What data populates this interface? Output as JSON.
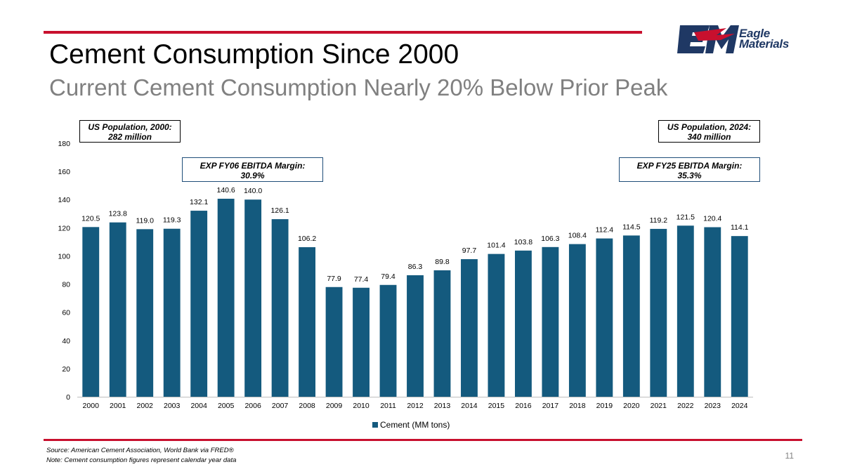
{
  "header": {
    "title": "Cement Consumption Since 2000",
    "subtitle": "Current Cement Consumption Nearly 20% Below Prior Peak"
  },
  "logo": {
    "mark": "EM",
    "line1": "Eagle",
    "line2": "Materials",
    "colors": {
      "red": "#c8102e",
      "navy": "#1f3864"
    }
  },
  "callouts": {
    "pop2000": {
      "line1": "US Population, 2000:",
      "line2": "282 million"
    },
    "pop2024": {
      "line1": "US Population, 2024:",
      "line2": "340 million"
    },
    "fy06": {
      "line1": "EXP FY06 EBITDA Margin:",
      "line2": "30.9%"
    },
    "fy25": {
      "line1": "EXP FY25 EBITDA Margin:",
      "line2": "35.3%"
    }
  },
  "chart_data": {
    "type": "bar",
    "categories": [
      "2000",
      "2001",
      "2002",
      "2003",
      "2004",
      "2005",
      "2006",
      "2007",
      "2008",
      "2009",
      "2010",
      "2011",
      "2012",
      "2013",
      "2014",
      "2015",
      "2016",
      "2017",
      "2018",
      "2019",
      "2020",
      "2021",
      "2022",
      "2023",
      "2024"
    ],
    "series": [
      {
        "name": "Cement (MM tons)",
        "values": [
          120.5,
          123.8,
          119.0,
          119.3,
          132.1,
          140.6,
          140.0,
          126.1,
          106.2,
          77.9,
          77.4,
          79.4,
          86.3,
          89.8,
          97.7,
          101.4,
          103.8,
          106.3,
          108.4,
          112.4,
          114.5,
          119.2,
          121.5,
          120.4,
          114.1
        ],
        "color": "#145a7e"
      }
    ],
    "data_labels": [
      "120.5",
      "123.8",
      "119.0",
      "119.3",
      "132.1",
      "140.6",
      "140.0",
      "126.1",
      "106.2",
      "77.9",
      "77.4",
      "79.4",
      "86.3",
      "89.8",
      "97.7",
      "101.4",
      "103.8",
      "106.3",
      "108.4",
      "112.4",
      "114.5",
      "119.2",
      "121.5",
      "120.4",
      "114.1"
    ],
    "yticks": [
      "0",
      "20",
      "40",
      "60",
      "80",
      "100",
      "120",
      "140",
      "160",
      "180"
    ],
    "ylim": [
      0,
      180
    ],
    "title": "",
    "xlabel": "",
    "ylabel": "",
    "grid": false,
    "legend": "bottom"
  },
  "footer": {
    "source": "Source: American Cement Association, World Bank via FRED®",
    "note": "Note: Cement consumption figures represent calendar year data",
    "page": "11"
  }
}
